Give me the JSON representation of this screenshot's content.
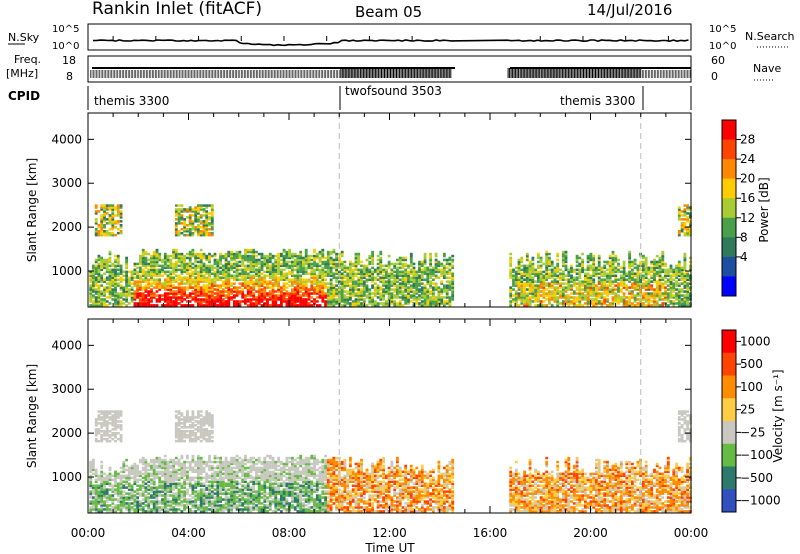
{
  "header": {
    "site": "Rankin Inlet (fitACF)",
    "beam": "Beam 05",
    "date": "14/Jul/2016"
  },
  "status_panel": {
    "nsky_label": "N.Sky",
    "nsky_ticks": [
      "10^5",
      "10^0"
    ],
    "nsearch_label": "N.Search",
    "nsearch_ticks": [
      "10^5",
      "10^0"
    ],
    "freq_label": "Freq.",
    "freq_unit": "[MHz]",
    "freq_ticks": [
      "18",
      "8"
    ],
    "nave_label": "Nave",
    "nave_ticks": [
      "60",
      "0"
    ],
    "cpid_label": "CPID",
    "cpid_segments": [
      {
        "name": "themis 3300",
        "start_hour": 0,
        "end_hour": 10
      },
      {
        "name": "twofsound 3503",
        "start_hour": 10,
        "end_hour": 22
      },
      {
        "name": "themis 3300",
        "start_hour": 22,
        "end_hour": 24
      }
    ],
    "data_gap_hours": [
      14.5,
      16.7
    ]
  },
  "colors": {
    "power": [
      "#0000ff",
      "#1e4ea0",
      "#2e7a5a",
      "#4aa04a",
      "#a8cc33",
      "#ffcc00",
      "#ff8800",
      "#ff4400",
      "#ff0000"
    ],
    "velocity": [
      "#3050c0",
      "#2e7a6a",
      "#66bb44",
      "#c8c8c0",
      "#ffcc44",
      "#ff8c00",
      "#ff4400",
      "#ff0000"
    ]
  },
  "chart_data": [
    {
      "type": "heatmap",
      "ylabel": "Slant Range [km]",
      "y_ticks": [
        1000,
        2000,
        3000,
        4000
      ],
      "ylim": [
        180,
        4600
      ],
      "x_ticks": [
        "00:00",
        "04:00",
        "08:00",
        "12:00",
        "16:00",
        "20:00",
        "00:00"
      ],
      "xlim_hours": [
        0,
        24
      ],
      "colorbar": {
        "label": "Power [dB]",
        "ticks": [
          4,
          8,
          12,
          16,
          20,
          24,
          28
        ]
      }
    },
    {
      "type": "heatmap",
      "ylabel": "Slant Range [km]",
      "y_ticks": [
        1000,
        2000,
        3000,
        4000
      ],
      "ylim": [
        180,
        4600
      ],
      "xlabel": "Time UT",
      "x_ticks": [
        "00:00",
        "04:00",
        "08:00",
        "12:00",
        "16:00",
        "20:00",
        "00:00"
      ],
      "xlim_hours": [
        0,
        24
      ],
      "colorbar": {
        "label": "Velocity [m s⁻¹]",
        "ticks": [
          "1000",
          "500",
          "100",
          "25",
          "−25",
          "−100",
          "−500",
          "−1000"
        ]
      }
    }
  ]
}
